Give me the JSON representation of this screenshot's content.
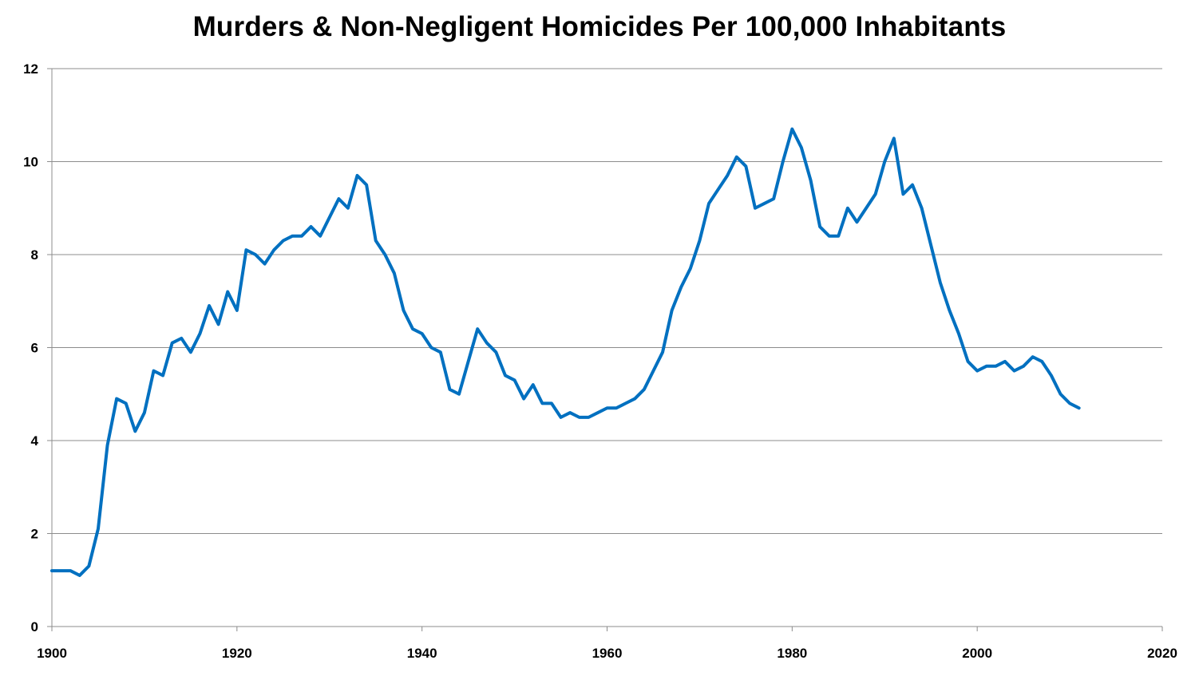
{
  "chart_data": {
    "type": "line",
    "title": "Murders & Non-Negligent Homicides Per 100,000 Inhabitants",
    "xlabel": "",
    "ylabel": "",
    "xlim": [
      1900,
      2020
    ],
    "ylim": [
      0,
      12
    ],
    "x_ticks": [
      1900,
      1920,
      1940,
      1960,
      1980,
      2000,
      2020
    ],
    "y_ticks": [
      0,
      2,
      4,
      6,
      8,
      10,
      12
    ],
    "grid": "horizontal",
    "legend": "none",
    "line_color": "#0070C0",
    "gridline_color": "#8C8C8C",
    "series": [
      {
        "x": [
          1900,
          1901,
          1902,
          1903,
          1904,
          1905,
          1906,
          1907,
          1908,
          1909,
          1910,
          1911,
          1912,
          1913,
          1914,
          1915,
          1916,
          1917,
          1918,
          1919,
          1920,
          1921,
          1922,
          1923,
          1924,
          1925,
          1926,
          1927,
          1928,
          1929,
          1930,
          1931,
          1932,
          1933,
          1934,
          1935,
          1936,
          1937,
          1938,
          1939,
          1940,
          1941,
          1942,
          1943,
          1944,
          1945,
          1946,
          1947,
          1948,
          1949,
          1950,
          1951,
          1952,
          1953,
          1954,
          1955,
          1956,
          1957,
          1958,
          1959,
          1960,
          1961,
          1962,
          1963,
          1964,
          1965,
          1966,
          1967,
          1968,
          1969,
          1970,
          1971,
          1972,
          1973,
          1974,
          1975,
          1976,
          1977,
          1978,
          1979,
          1980,
          1981,
          1982,
          1983,
          1984,
          1985,
          1986,
          1987,
          1988,
          1989,
          1990,
          1991,
          1992,
          1993,
          1994,
          1995,
          1996,
          1997,
          1998,
          1999,
          2000,
          2001,
          2002,
          2003,
          2004,
          2005,
          2006,
          2007,
          2008,
          2009,
          2010,
          2011
        ],
        "values": [
          1.2,
          1.2,
          1.2,
          1.1,
          1.3,
          2.1,
          3.9,
          4.9,
          4.8,
          4.2,
          4.6,
          5.5,
          5.4,
          6.1,
          6.2,
          5.9,
          6.3,
          6.9,
          6.5,
          7.2,
          6.8,
          8.1,
          8.0,
          7.8,
          8.1,
          8.3,
          8.4,
          8.4,
          8.6,
          8.4,
          8.8,
          9.2,
          9.0,
          9.7,
          9.5,
          8.3,
          8.0,
          7.6,
          6.8,
          6.4,
          6.3,
          6.0,
          5.9,
          5.1,
          5.0,
          5.7,
          6.4,
          6.1,
          5.9,
          5.4,
          5.3,
          4.9,
          5.2,
          4.8,
          4.8,
          4.5,
          4.6,
          4.5,
          4.5,
          4.6,
          4.7,
          4.7,
          4.8,
          4.9,
          5.1,
          5.5,
          5.9,
          6.8,
          7.3,
          7.7,
          8.3,
          9.1,
          9.4,
          9.7,
          10.1,
          9.9,
          9.0,
          9.1,
          9.2,
          10.0,
          10.7,
          10.3,
          9.6,
          8.6,
          8.4,
          8.4,
          9.0,
          8.7,
          9.0,
          9.3,
          10.0,
          10.5,
          9.3,
          9.5,
          9.0,
          8.2,
          7.4,
          6.8,
          6.3,
          5.7,
          5.5,
          5.6,
          5.6,
          5.7,
          5.5,
          5.6,
          5.8,
          5.7,
          5.4,
          5.0,
          4.8,
          4.7
        ]
      }
    ]
  }
}
